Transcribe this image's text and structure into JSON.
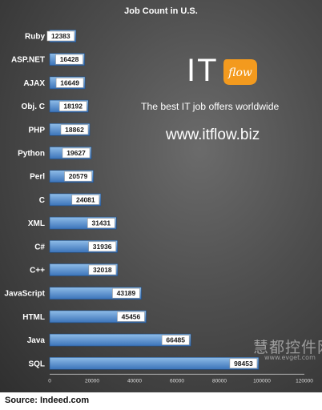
{
  "chart_data": {
    "type": "bar",
    "orientation": "horizontal",
    "title": "Job Count in U.S.",
    "categories": [
      "Ruby",
      "ASP.NET",
      "AJAX",
      "Obj. C",
      "PHP",
      "Python",
      "Perl",
      "C",
      "XML",
      "C#",
      "C++",
      "JavaScript",
      "HTML",
      "Java",
      "SQL"
    ],
    "values": [
      12383,
      16428,
      16649,
      18192,
      18862,
      19627,
      20579,
      24081,
      31431,
      31936,
      32018,
      43189,
      45456,
      66485,
      98453
    ],
    "xlim": [
      0,
      120000
    ],
    "xticks": [
      "0",
      "20000",
      "40000",
      "60000",
      "80000",
      "100000",
      "120000"
    ],
    "data_labels": true,
    "grid": false,
    "legend": "none"
  },
  "colors": {
    "bar_top": "#8fbde8",
    "bar_bottom": "#3b73b9",
    "logo_orange": "#f39a1e"
  },
  "overlay": {
    "logo_text": "IT",
    "logo_badge_text": "flow",
    "tagline": "The best IT job offers worldwide",
    "website": "www.itflow.biz",
    "watermark_cn": "慧都控件网",
    "watermark_url": "www.evget.com"
  },
  "footer": {
    "source": "Source: Indeed.com"
  }
}
